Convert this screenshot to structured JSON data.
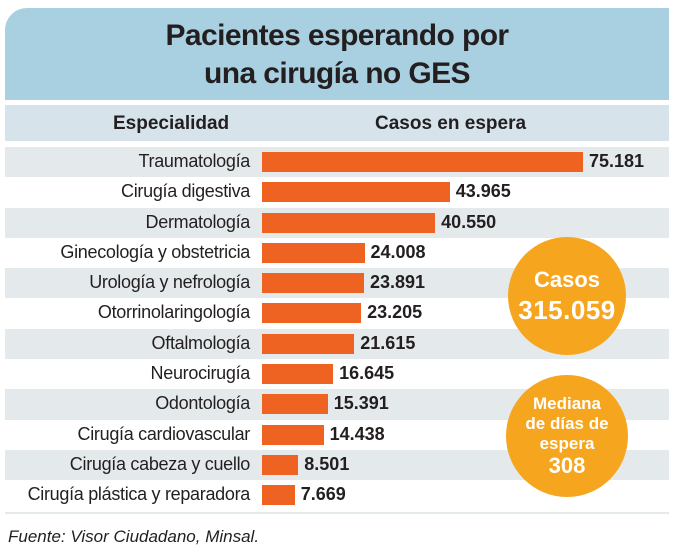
{
  "chart_data": {
    "type": "bar",
    "orientation": "horizontal",
    "title": "Pacientes esperando por una cirugía no GES",
    "title_lines": [
      "Pacientes esperando por",
      "una cirugía no GES"
    ],
    "column_headers": {
      "category": "Especialidad",
      "value": "Casos en espera"
    },
    "categories": [
      "Traumatología",
      "Cirugía digestiva",
      "Dermatología",
      "Ginecología y obstetricia",
      "Urología y nefrología",
      "Otorrinolaringología",
      "Oftalmología",
      "Neurocirugía",
      "Odontología",
      "Cirugía cardiovascular",
      "Cirugía cabeza y cuello",
      "Cirugía plástica y reparadora"
    ],
    "values": [
      75181,
      43965,
      40550,
      24008,
      23891,
      23205,
      21615,
      16645,
      15391,
      14438,
      8501,
      7669
    ],
    "value_labels": [
      "75.181",
      "43.965",
      "40.550",
      "24.008",
      "23.891",
      "23.205",
      "21.615",
      "16.645",
      "15.391",
      "14.438",
      "8.501",
      "7.669"
    ],
    "xlim": [
      0,
      75181
    ],
    "bar_color": "#ef6322",
    "annotations": {
      "total_label": "Casos",
      "total_value": "315.059",
      "median_lines": [
        "Mediana",
        "de días de",
        "espera"
      ],
      "median_value": "308",
      "circle_color": "#f6a51f"
    },
    "source": "Fuente: Visor Ciudadano, Minsal."
  }
}
